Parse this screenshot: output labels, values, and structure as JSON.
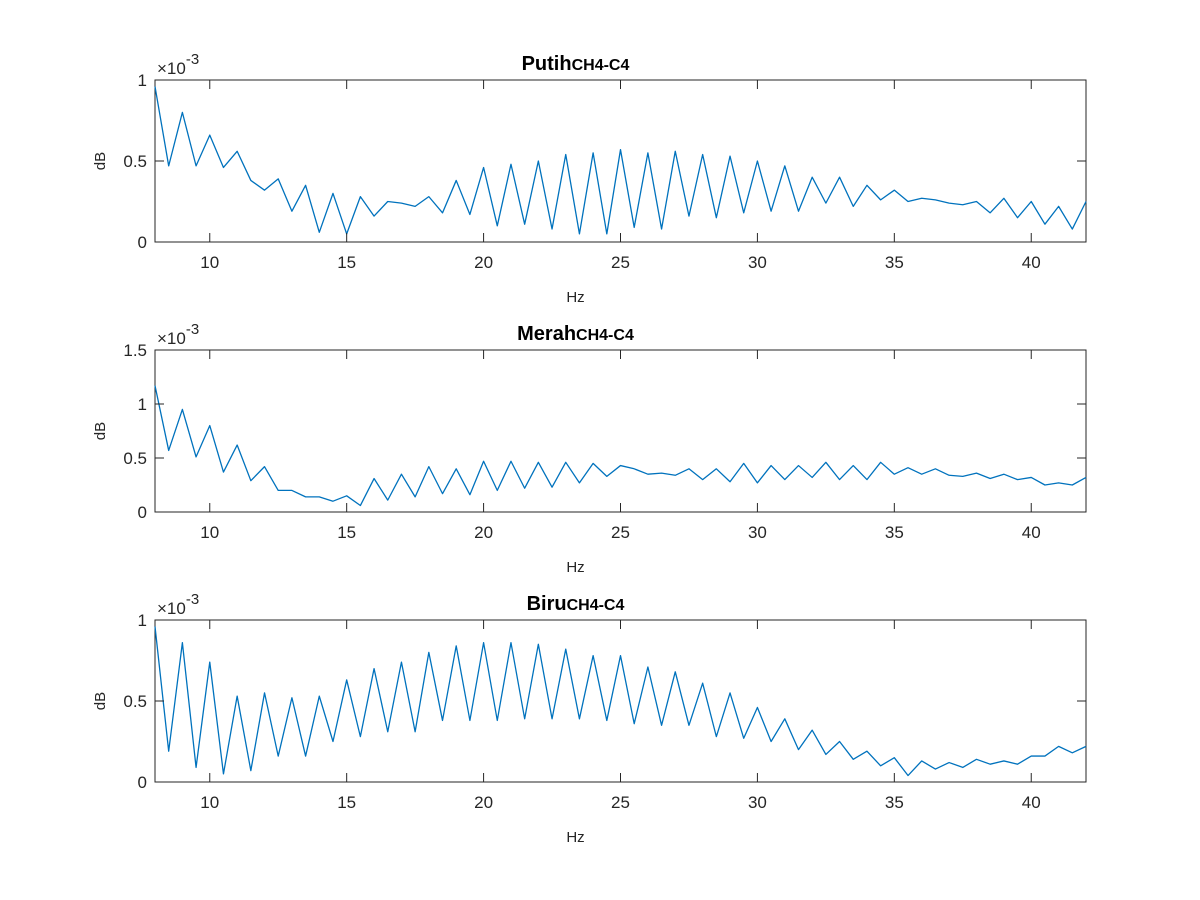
{
  "colors": {
    "line": "#0072BD",
    "axis": "#262626",
    "background": "#ffffff"
  },
  "chart_data": [
    {
      "type": "line",
      "title": "Putih",
      "title_sub": "CH4-C4",
      "xlabel": "Hz",
      "ylabel": "dB",
      "exponent_prefix": "×10",
      "exponent": "-3",
      "xlim": [
        8,
        42
      ],
      "ylim": [
        0,
        0.001
      ],
      "xticks": [
        "10",
        "15",
        "20",
        "25",
        "30",
        "35",
        "40"
      ],
      "yticks": [
        "0",
        "0.5",
        "1"
      ],
      "grid": false,
      "series": [
        {
          "x": [
            8,
            8.5,
            9,
            9.5,
            10,
            10.5,
            11,
            11.5,
            12,
            12.5,
            13,
            13.5,
            14,
            14.5,
            15,
            15.5,
            16,
            16.5,
            17,
            17.5,
            18,
            18.5,
            19,
            19.5,
            20,
            20.5,
            21,
            21.5,
            22,
            22.5,
            23,
            23.5,
            24,
            24.5,
            25,
            25.5,
            26,
            26.5,
            27,
            27.5,
            28,
            28.5,
            29,
            29.5,
            30,
            30.5,
            31,
            31.5,
            32,
            32.5,
            33,
            33.5,
            34,
            34.5,
            35,
            35.5,
            36,
            36.5,
            37,
            37.5,
            38,
            38.5,
            39,
            39.5,
            40,
            40.5,
            41,
            41.5,
            42
          ],
          "y": [
            0.00096,
            0.00047,
            0.0008,
            0.00047,
            0.00066,
            0.00046,
            0.00056,
            0.00038,
            0.00032,
            0.00039,
            0.00019,
            0.00035,
            6e-05,
            0.0003,
            5e-05,
            0.00028,
            0.00016,
            0.00025,
            0.00024,
            0.00022,
            0.00028,
            0.00018,
            0.00038,
            0.00017,
            0.00046,
            0.0001,
            0.00048,
            0.00011,
            0.0005,
            8e-05,
            0.00054,
            5e-05,
            0.00055,
            5e-05,
            0.00057,
            9e-05,
            0.00055,
            8e-05,
            0.00056,
            0.00016,
            0.00054,
            0.00015,
            0.00053,
            0.00018,
            0.0005,
            0.00019,
            0.00047,
            0.00019,
            0.0004,
            0.00024,
            0.0004,
            0.00022,
            0.00035,
            0.00026,
            0.00032,
            0.00025,
            0.00027,
            0.00026,
            0.00024,
            0.00023,
            0.00025,
            0.00018,
            0.00027,
            0.00015,
            0.00025,
            0.00011,
            0.00022,
            8e-05,
            0.00025
          ]
        }
      ]
    },
    {
      "type": "line",
      "title": "Merah",
      "title_sub": "CH4-C4",
      "xlabel": "Hz",
      "ylabel": "dB",
      "exponent_prefix": "×10",
      "exponent": "-3",
      "xlim": [
        8,
        42
      ],
      "ylim": [
        0,
        0.0015
      ],
      "xticks": [
        "10",
        "15",
        "20",
        "25",
        "30",
        "35",
        "40"
      ],
      "yticks": [
        "0",
        "0.5",
        "1",
        "1.5"
      ],
      "grid": false,
      "series": [
        {
          "x": [
            8,
            8.5,
            9,
            9.5,
            10,
            10.5,
            11,
            11.5,
            12,
            12.5,
            13,
            13.5,
            14,
            14.5,
            15,
            15.5,
            16,
            16.5,
            17,
            17.5,
            18,
            18.5,
            19,
            19.5,
            20,
            20.5,
            21,
            21.5,
            22,
            22.5,
            23,
            23.5,
            24,
            24.5,
            25,
            25.5,
            26,
            26.5,
            27,
            27.5,
            28,
            28.5,
            29,
            29.5,
            30,
            30.5,
            31,
            31.5,
            32,
            32.5,
            33,
            33.5,
            34,
            34.5,
            35,
            35.5,
            36,
            36.5,
            37,
            37.5,
            38,
            38.5,
            39,
            39.5,
            40,
            40.5,
            41,
            41.5,
            42
          ],
          "y": [
            0.00117,
            0.00057,
            0.00095,
            0.00051,
            0.0008,
            0.00037,
            0.00062,
            0.00029,
            0.00042,
            0.0002,
            0.0002,
            0.00014,
            0.00014,
            0.0001,
            0.00015,
            6e-05,
            0.00031,
            0.00011,
            0.00035,
            0.00014,
            0.00042,
            0.00017,
            0.0004,
            0.00016,
            0.00047,
            0.0002,
            0.00047,
            0.00022,
            0.00046,
            0.00023,
            0.00046,
            0.00027,
            0.00045,
            0.00033,
            0.00043,
            0.0004,
            0.00035,
            0.00036,
            0.00034,
            0.0004,
            0.0003,
            0.0004,
            0.00028,
            0.00045,
            0.00027,
            0.00043,
            0.0003,
            0.00043,
            0.00032,
            0.00046,
            0.0003,
            0.00043,
            0.0003,
            0.00046,
            0.00035,
            0.00041,
            0.00035,
            0.0004,
            0.00034,
            0.00033,
            0.00036,
            0.00031,
            0.00035,
            0.0003,
            0.00032,
            0.00025,
            0.00027,
            0.00025,
            0.00032
          ]
        }
      ]
    },
    {
      "type": "line",
      "title": "Biru",
      "title_sub": "CH4-C4",
      "xlabel": "Hz",
      "ylabel": "dB",
      "exponent_prefix": "×10",
      "exponent": "-3",
      "xlim": [
        8,
        42
      ],
      "ylim": [
        0,
        0.001
      ],
      "xticks": [
        "10",
        "15",
        "20",
        "25",
        "30",
        "35",
        "40"
      ],
      "yticks": [
        "0",
        "0.5",
        "1"
      ],
      "grid": false,
      "series": [
        {
          "x": [
            8,
            8.5,
            9,
            9.5,
            10,
            10.5,
            11,
            11.5,
            12,
            12.5,
            13,
            13.5,
            14,
            14.5,
            15,
            15.5,
            16,
            16.5,
            17,
            17.5,
            18,
            18.5,
            19,
            19.5,
            20,
            20.5,
            21,
            21.5,
            22,
            22.5,
            23,
            23.5,
            24,
            24.5,
            25,
            25.5,
            26,
            26.5,
            27,
            27.5,
            28,
            28.5,
            29,
            29.5,
            30,
            30.5,
            31,
            31.5,
            32,
            32.5,
            33,
            33.5,
            34,
            34.5,
            35,
            35.5,
            36,
            36.5,
            37,
            37.5,
            38,
            38.5,
            39,
            39.5,
            40,
            40.5,
            41,
            41.5,
            42
          ],
          "y": [
            0.00096,
            0.00019,
            0.00086,
            9e-05,
            0.00074,
            5e-05,
            0.00053,
            7e-05,
            0.00055,
            0.00016,
            0.00052,
            0.00016,
            0.00053,
            0.00025,
            0.00063,
            0.00028,
            0.0007,
            0.00031,
            0.00074,
            0.00031,
            0.0008,
            0.00038,
            0.00084,
            0.00038,
            0.00086,
            0.00038,
            0.00086,
            0.00039,
            0.00085,
            0.00039,
            0.00082,
            0.00039,
            0.00078,
            0.00038,
            0.00078,
            0.00036,
            0.00071,
            0.00035,
            0.00068,
            0.00035,
            0.00061,
            0.00028,
            0.00055,
            0.00027,
            0.00046,
            0.00025,
            0.00039,
            0.0002,
            0.00032,
            0.00017,
            0.00025,
            0.00014,
            0.00019,
            0.0001,
            0.00015,
            4e-05,
            0.00013,
            8e-05,
            0.00012,
            9e-05,
            0.00014,
            0.00011,
            0.00013,
            0.00011,
            0.00016,
            0.00016,
            0.00022,
            0.00018,
            0.00022
          ]
        }
      ]
    }
  ]
}
